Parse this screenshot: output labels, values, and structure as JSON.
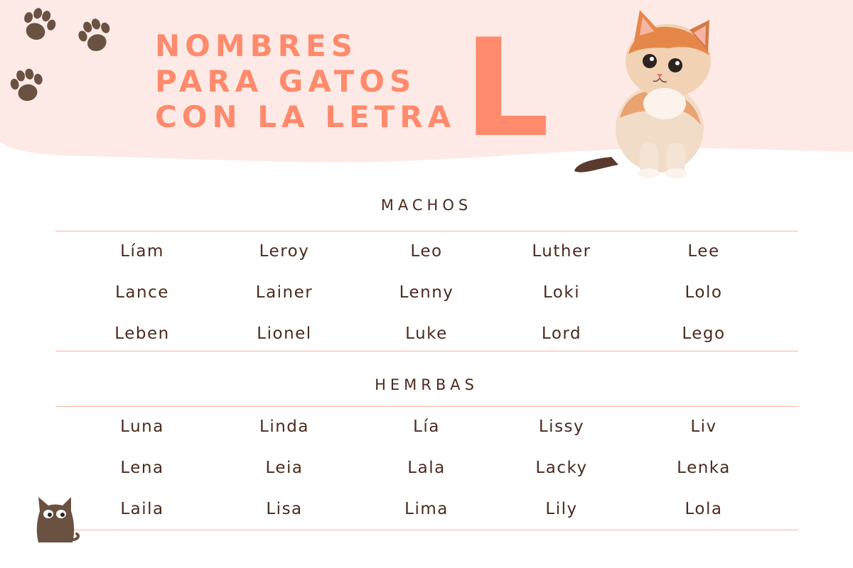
{
  "header": {
    "title_lines": [
      "NOMBRES",
      "PARA GATOS",
      "CON LA LETRA"
    ],
    "letter": "L",
    "accent_color": "#ff8a6c",
    "background_color": "#fdeae6"
  },
  "sections": [
    {
      "title": "MACHOS",
      "names": [
        "Líam",
        "Leroy",
        "Leo",
        "Luther",
        "Lee",
        "Lance",
        "Lainer",
        "Lenny",
        "Loki",
        "Lolo",
        "Leben",
        "Lionel",
        "Luke",
        "Lord",
        "Lego"
      ]
    },
    {
      "title": "HEMRBAS",
      "names": [
        "Luna",
        "Linda",
        "Lía",
        "Lissy",
        "Liv",
        "Lena",
        "Leia",
        "Lala",
        "Lacky",
        "Lenka",
        "Laila",
        "Lisa",
        "Lima",
        "Lily",
        "Lola"
      ]
    }
  ],
  "icons": {
    "paw": "paw-print-icon",
    "kitten": "kitten-illustration",
    "logo": "cat-silhouette-icon"
  },
  "colors": {
    "text_brown": "#4b2a1d",
    "paw_brown": "#6b5142",
    "rule": "#f4b79c"
  }
}
